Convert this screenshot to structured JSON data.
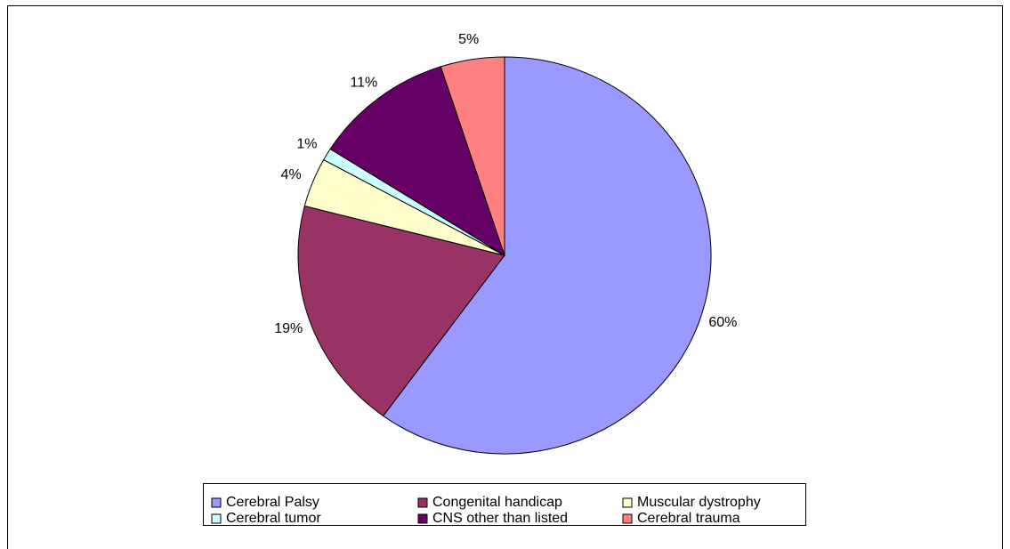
{
  "chart_data": {
    "type": "pie",
    "categories": [
      "Cerebral Palsy",
      "Congenital handicap",
      "Muscular dystrophy",
      "Cerebral tumor",
      "CNS other than listed",
      "Cerebral trauma"
    ],
    "values": [
      60,
      19,
      4,
      1,
      11,
      5
    ],
    "value_labels": [
      "60%",
      "19%",
      "4%",
      "1%",
      "11%",
      "5%"
    ],
    "colors": [
      "#9999ff",
      "#993366",
      "#ffffcc",
      "#ccffff",
      "#660066",
      "#ff8080"
    ],
    "legend": "bottom"
  }
}
